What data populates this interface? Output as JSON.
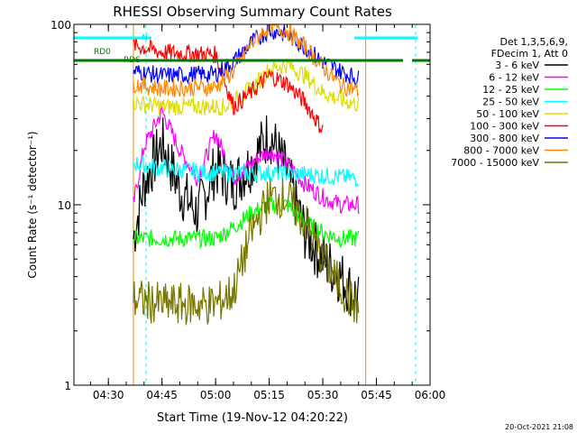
{
  "chart_data": {
    "type": "line",
    "title": "RHESSI Observing Summary Count Rates",
    "xlabel": "Start Time (19-Nov-12 04:20:22)",
    "ylabel": "Count Rate (s⁻¹ detector⁻¹)",
    "y_scale": "log",
    "ylim": [
      1,
      100
    ],
    "xlim": [
      "04:20:22",
      "06:00:00"
    ],
    "x_ticks": [
      "04:30",
      "04:45",
      "05:00",
      "05:15",
      "05:30",
      "05:45",
      "06:00"
    ],
    "y_ticks": [
      "1",
      "10",
      "100"
    ],
    "legend_header": [
      "Det 1,3,5,6,9,",
      "FDecim 1, Att 0"
    ],
    "legend_position": "right",
    "footer_timestamp": "20-Oct-2021 21:08",
    "annotations": [
      {
        "text": "RD0",
        "color": "#007700"
      },
      {
        "text": "RDS",
        "color": "#007700"
      },
      {
        "text": "N",
        "color": "#00dddd"
      }
    ],
    "data_gap": {
      "start": "04:37",
      "end": "05:42"
    },
    "series": [
      {
        "name": "3 - 6 keV",
        "color": "#000000",
        "x": [
          "04:37",
          "04:40",
          "04:45",
          "04:50",
          "04:55",
          "05:00",
          "05:05",
          "05:10",
          "05:15",
          "05:20",
          "05:25",
          "05:30",
          "05:35",
          "05:40"
        ],
        "values": [
          6.5,
          13,
          22,
          12,
          9,
          16,
          13,
          17,
          25,
          15,
          7,
          5,
          4,
          3
        ]
      },
      {
        "name": "6 - 12 keV",
        "color": "#ff00ff",
        "x": [
          "04:37",
          "04:40",
          "04:45",
          "04:50",
          "04:55",
          "05:00",
          "05:05",
          "05:10",
          "05:15",
          "05:20",
          "05:25",
          "05:30",
          "05:35",
          "05:40"
        ],
        "values": [
          10,
          21,
          33,
          20,
          14,
          25,
          14,
          17,
          20,
          17,
          13,
          11,
          10,
          10
        ]
      },
      {
        "name": "12 - 25 keV",
        "color": "#00ff00",
        "x": [
          "04:37",
          "04:45",
          "05:00",
          "05:05",
          "05:10",
          "05:15",
          "05:20",
          "05:25",
          "05:30",
          "05:35",
          "05:40"
        ],
        "values": [
          6.5,
          6.5,
          6.5,
          7.5,
          9,
          10,
          10,
          8,
          7,
          6.5,
          6.5
        ]
      },
      {
        "name": "25 - 50 keV",
        "color": "#00ffff",
        "x": [
          "04:37",
          "04:45",
          "05:00",
          "05:10",
          "05:15",
          "05:20",
          "05:30",
          "05:40"
        ],
        "values": [
          17,
          16,
          15,
          15,
          15,
          15,
          14.5,
          14
        ]
      },
      {
        "name": "50 - 100 keV",
        "color": "#dddd00",
        "x": [
          "04:37",
          "04:45",
          "05:00",
          "05:03",
          "05:10",
          "05:15",
          "05:20",
          "05:25",
          "05:30",
          "05:35",
          "05:40"
        ],
        "values": [
          37,
          35,
          35,
          35,
          44,
          56,
          60,
          52,
          42,
          38,
          36
        ]
      },
      {
        "name": "100 - 300 keV",
        "color": "#ff0000",
        "x": [
          "04:37",
          "04:45",
          "05:00",
          "05:05",
          "05:10",
          "05:15",
          "05:20",
          "05:25",
          "05:30"
        ],
        "values": [
          77,
          70,
          68,
          35,
          42,
          52,
          47,
          37,
          26
        ]
      },
      {
        "name": "300 - 800 keV",
        "color": "#0000ff",
        "x": [
          "04:37",
          "04:45",
          "05:00",
          "05:05",
          "05:10",
          "05:15",
          "05:20",
          "05:25",
          "05:30",
          "05:35",
          "05:40"
        ],
        "values": [
          55,
          52,
          53,
          62,
          79,
          93,
          88,
          75,
          62,
          55,
          50
        ]
      },
      {
        "name": "800 - 7000 keV",
        "color": "#ff8800",
        "x": [
          "04:37",
          "04:45",
          "05:00",
          "05:05",
          "05:10",
          "05:15",
          "05:20",
          "05:25",
          "05:30",
          "05:35",
          "05:40"
        ],
        "values": [
          47,
          44,
          45,
          55,
          78,
          98,
          92,
          75,
          58,
          46,
          43
        ]
      },
      {
        "name": "7000 - 15000 keV",
        "color": "#777700",
        "x": [
          "04:37",
          "04:45",
          "05:00",
          "05:05",
          "05:10",
          "05:15",
          "05:20",
          "05:25",
          "05:30",
          "05:35",
          "05:40"
        ],
        "values": [
          3,
          2.8,
          2.8,
          3.3,
          7,
          11,
          11,
          8,
          5,
          3.5,
          2.6
        ]
      }
    ]
  }
}
